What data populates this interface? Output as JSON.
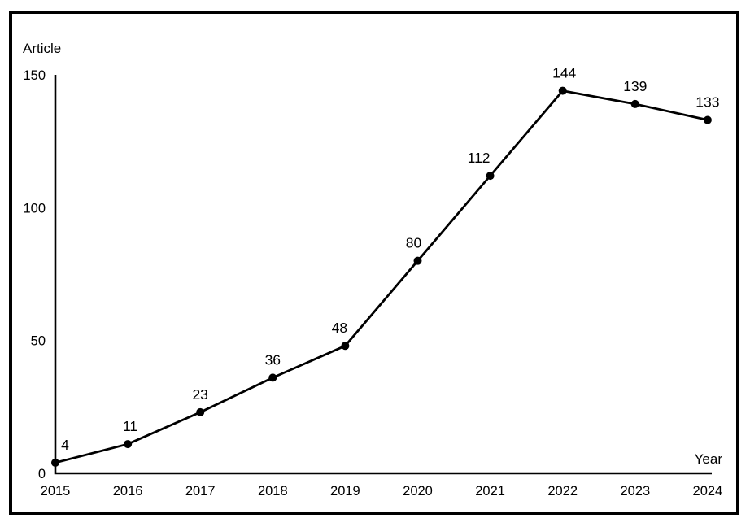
{
  "chart_data": {
    "type": "line",
    "title": "",
    "ylabel": "Article",
    "xlabel": "Year",
    "categories": [
      "2015",
      "2016",
      "2017",
      "2018",
      "2019",
      "2020",
      "2021",
      "2022",
      "2023",
      "2024"
    ],
    "series": [
      {
        "name": "Articles",
        "values": [
          4,
          11,
          23,
          36,
          48,
          80,
          112,
          144,
          139,
          133
        ]
      }
    ],
    "point_labels": [
      "4",
      "11",
      "23",
      "36",
      "48",
      "80",
      "112",
      "144",
      "139",
      "133"
    ],
    "yticks": [
      0,
      50,
      100,
      150
    ],
    "ylim": [
      0,
      150
    ],
    "grid": false,
    "legend_position": "none",
    "layout_hints": {
      "label_dx": [
        12,
        3,
        0,
        0,
        -7,
        -5,
        -14,
        2,
        0,
        0
      ],
      "marker": "filled-circle"
    },
    "colors": {
      "line": "#000000",
      "marker": "#000000",
      "axis": "#000000",
      "text": "#000000",
      "frame_border": "#000000",
      "background": "#ffffff"
    }
  }
}
